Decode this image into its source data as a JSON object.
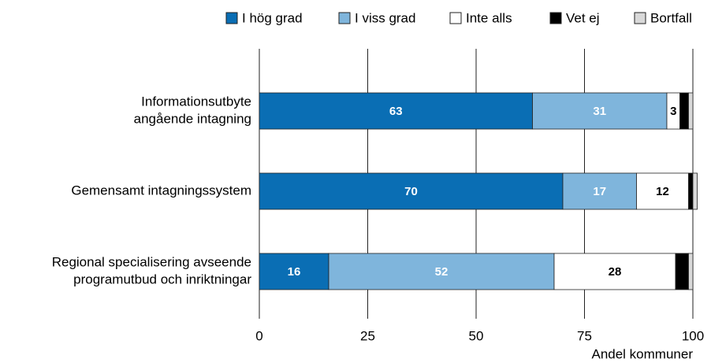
{
  "chart_data": {
    "type": "stacked-bar-horizontal",
    "categories": [
      [
        "Informationsutbyte",
        "angående intagning"
      ],
      [
        "Gemensamt intagningssystem"
      ],
      [
        "Regional specialisering avseende",
        "programutbud och inriktningar"
      ]
    ],
    "series": [
      {
        "name": "I hög grad",
        "color": "#0a6eb4",
        "label_color": "#ffffff",
        "show_labels": true,
        "values": [
          63,
          70,
          16
        ]
      },
      {
        "name": "I viss grad",
        "color": "#7fb5dc",
        "label_color": "#ffffff",
        "show_labels": true,
        "values": [
          31,
          17,
          52
        ]
      },
      {
        "name": "Inte alls",
        "color": "#ffffff",
        "label_color": "#000000",
        "show_labels": true,
        "values": [
          3,
          12,
          28
        ]
      },
      {
        "name": "Vet ej",
        "color": "#000000",
        "label_color": "#ffffff",
        "show_labels": false,
        "values": [
          2,
          1,
          3
        ]
      },
      {
        "name": "Bortfall",
        "color": "#d9d9d9",
        "label_color": "#000000",
        "show_labels": false,
        "values": [
          1,
          1,
          1
        ]
      }
    ],
    "xlabel": "Andel kommuner",
    "xlim": [
      0,
      100
    ],
    "xticks": [
      0,
      25,
      50,
      75,
      100
    ],
    "grid": true,
    "legend": "top"
  }
}
